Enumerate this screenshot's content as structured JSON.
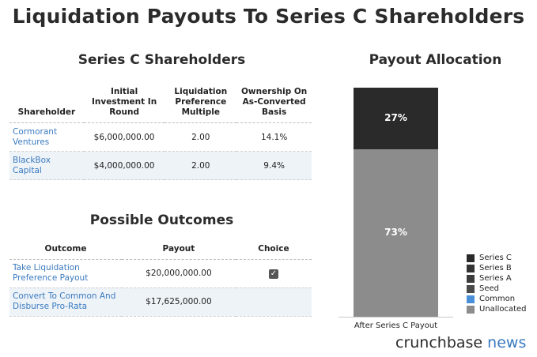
{
  "title": "Liquidation Payouts To Series C Shareholders",
  "shareholders": {
    "title": "Series C Shareholders",
    "headers": [
      "Shareholder",
      "Initial Investment In Round",
      "Liquidation Preference Multiple",
      "Ownership On As-Converted Basis"
    ],
    "rows": [
      {
        "name": "Cormorant Ventures",
        "investment": "$6,000,000.00",
        "multiple": "2.00",
        "ownership": "14.1%"
      },
      {
        "name": "BlackBox Capital",
        "investment": "$4,000,000.00",
        "multiple": "2.00",
        "ownership": "9.4%"
      }
    ]
  },
  "outcomes": {
    "title": "Possible Outcomes",
    "headers": [
      "Outcome",
      "Payout",
      "Choice"
    ],
    "rows": [
      {
        "outcome": "Take Liquidation Preference Payout",
        "payout": "$20,000,000.00",
        "checked": true
      },
      {
        "outcome": "Convert To Common And Disburse Pro-Rata",
        "payout": "$17,625,000.00",
        "checked": false
      }
    ]
  },
  "chart_data": {
    "type": "bar",
    "title": "Payout Allocation",
    "categories": [
      "After Series C Payout"
    ],
    "series": [
      {
        "name": "Series C",
        "values": [
          27
        ],
        "label": "27%",
        "color": "#2a2a2a"
      },
      {
        "name": "Series B",
        "values": [
          0
        ],
        "color": "#333333"
      },
      {
        "name": "Series A",
        "values": [
          0
        ],
        "color": "#3c3c3c"
      },
      {
        "name": "Seed",
        "values": [
          0
        ],
        "color": "#4a4a4a"
      },
      {
        "name": "Common",
        "values": [
          0
        ],
        "color": "#4a90d9"
      },
      {
        "name": "Unallocated",
        "values": [
          73
        ],
        "label": "73%",
        "color": "#8c8c8c"
      }
    ],
    "ylim": [
      0,
      100
    ],
    "stacked": true,
    "legend": "right"
  },
  "brand": {
    "name": "crunchbase",
    "suffix": "news"
  }
}
